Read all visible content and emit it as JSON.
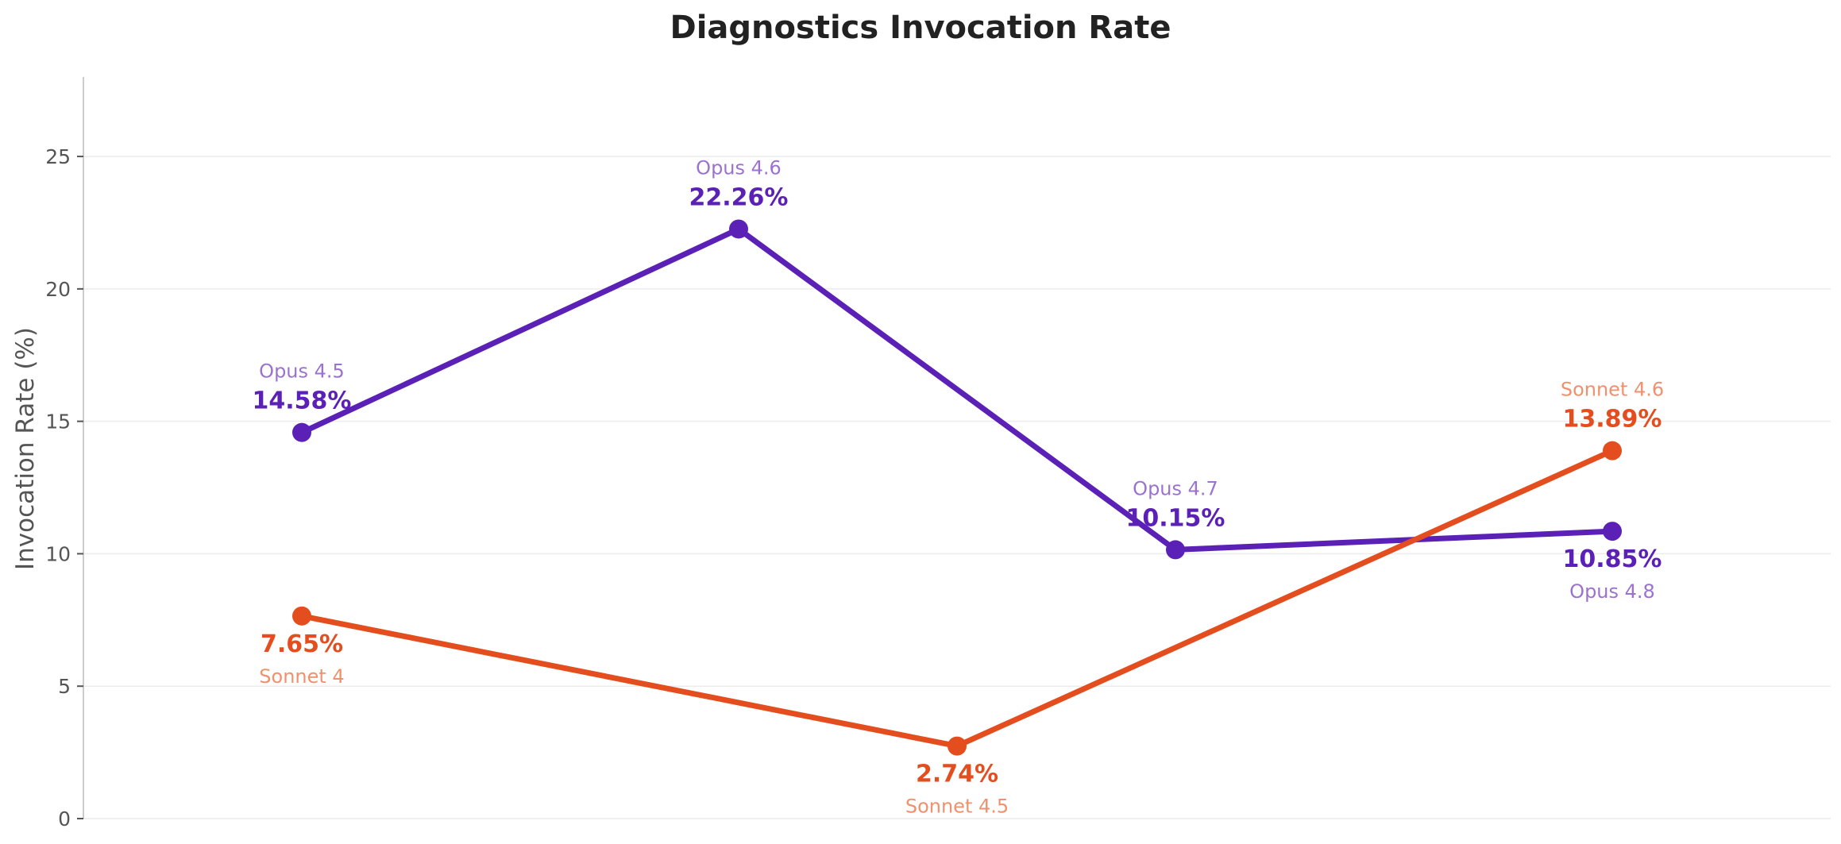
{
  "chart_data": {
    "type": "line",
    "title": "Diagnostics Invocation Rate",
    "xlabel": "",
    "ylabel": "Invocation Rate (%)",
    "ylim": [
      0,
      28
    ],
    "yticks": [
      0,
      5,
      10,
      15,
      20,
      25
    ],
    "xlim": [
      0,
      8
    ],
    "grid": true,
    "series": [
      {
        "color": "#5b21b6",
        "label_color": "#9b72d0",
        "points": [
          {
            "x": 1.0,
            "y": 14.58,
            "label": "14.58%",
            "name": "Opus 4.5",
            "label_pos": "above"
          },
          {
            "x": 3.0,
            "y": 22.26,
            "label": "22.26%",
            "name": "Opus 4.6",
            "label_pos": "above"
          },
          {
            "x": 5.0,
            "y": 10.15,
            "label": "10.15%",
            "name": "Opus 4.7",
            "label_pos": "above"
          },
          {
            "x": 7.0,
            "y": 10.85,
            "label": "10.85%",
            "name": "Opus 4.8",
            "label_pos": "below"
          }
        ]
      },
      {
        "color": "#e44d1e",
        "label_color": "#f0916e",
        "points": [
          {
            "x": 1.0,
            "y": 7.65,
            "label": "7.65%",
            "name": "Sonnet 4",
            "label_pos": "below"
          },
          {
            "x": 4.0,
            "y": 2.74,
            "label": "2.74%",
            "name": "Sonnet 4.5",
            "label_pos": "below"
          },
          {
            "x": 7.0,
            "y": 13.89,
            "label": "13.89%",
            "name": "Sonnet 4.6",
            "label_pos": "above"
          }
        ]
      }
    ]
  }
}
